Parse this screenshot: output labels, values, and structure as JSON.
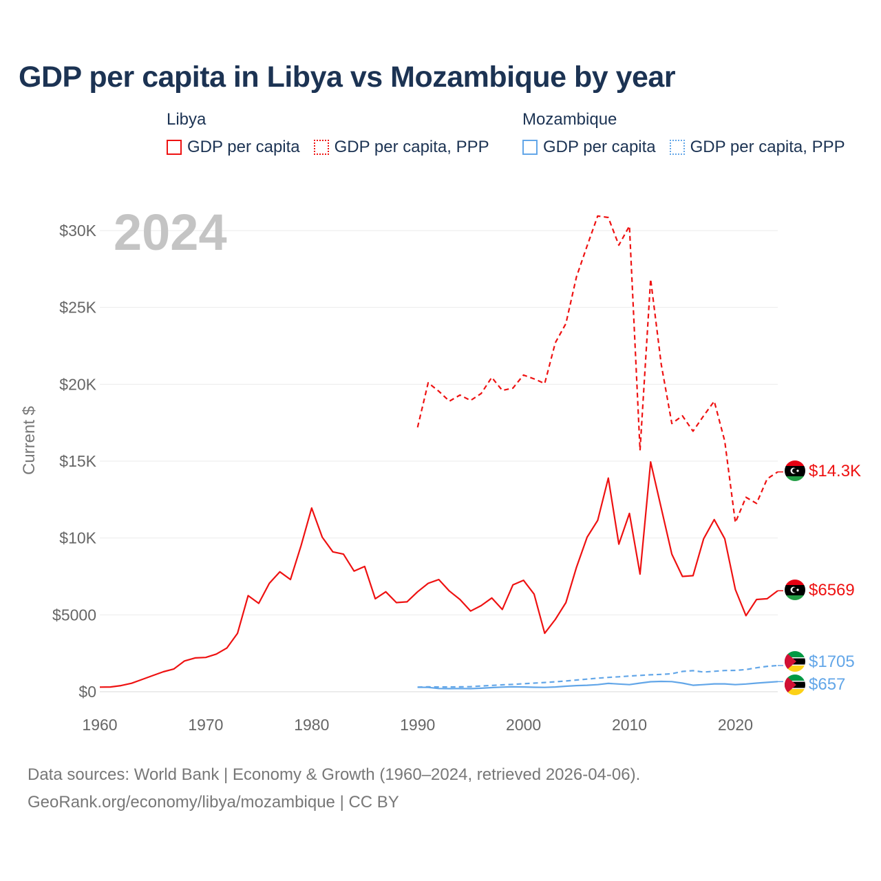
{
  "title": "GDP per capita in Libya vs Mozambique by year",
  "legend": {
    "groups": [
      {
        "name": "Libya",
        "items": [
          "GDP per capita",
          "GDP per capita, PPP"
        ]
      },
      {
        "name": "Mozambique",
        "items": [
          "GDP per capita",
          "GDP per capita, PPP"
        ]
      }
    ]
  },
  "year_watermark": "2024",
  "footer": {
    "line1": "Data sources: World Bank | Economy & Growth (1960–2024, retrieved 2026-04-06).",
    "line2": "GeoRank.org/economy/libya/mozambique | CC BY"
  },
  "chart_data": {
    "type": "line",
    "title": "GDP per capita in Libya vs Mozambique by year",
    "ylabel": "Current $",
    "xlabel": "",
    "xlim": [
      1960,
      2024
    ],
    "ylim": [
      0,
      31000
    ],
    "x_ticks": [
      1960,
      1970,
      1980,
      1990,
      2000,
      2010,
      2020
    ],
    "y_ticks": [
      {
        "value": 0,
        "label": "$0"
      },
      {
        "value": 5000,
        "label": "$5000"
      },
      {
        "value": 10000,
        "label": "$10K"
      },
      {
        "value": 15000,
        "label": "$15K"
      },
      {
        "value": 20000,
        "label": "$20K"
      },
      {
        "value": 25000,
        "label": "$25K"
      },
      {
        "value": 30000,
        "label": "$30K"
      }
    ],
    "grid": true,
    "series": [
      {
        "name": "Libya GDP per capita",
        "country": "Libya",
        "style": "solid",
        "color": "#ee1111",
        "end_label": "$6569",
        "x": [
          1960,
          1961,
          1962,
          1963,
          1964,
          1965,
          1966,
          1967,
          1968,
          1969,
          1970,
          1971,
          1972,
          1973,
          1974,
          1975,
          1976,
          1977,
          1978,
          1979,
          1980,
          1981,
          1982,
          1983,
          1984,
          1985,
          1986,
          1987,
          1988,
          1989,
          1990,
          1991,
          1992,
          1993,
          1994,
          1995,
          1996,
          1997,
          1998,
          1999,
          2000,
          2001,
          2002,
          2003,
          2004,
          2005,
          2006,
          2007,
          2008,
          2009,
          2010,
          2011,
          2012,
          2013,
          2014,
          2015,
          2016,
          2017,
          2018,
          2019,
          2020,
          2021,
          2022,
          2023,
          2024
        ],
        "values": [
          300,
          310,
          400,
          550,
          800,
          1050,
          1300,
          1480,
          2000,
          2200,
          2230,
          2450,
          2850,
          3800,
          6250,
          5750,
          7050,
          7800,
          7300,
          9500,
          11950,
          10050,
          9100,
          8950,
          7850,
          8150,
          6050,
          6500,
          5800,
          5850,
          6500,
          7050,
          7300,
          6550,
          6000,
          5250,
          5600,
          6100,
          5350,
          6950,
          7250,
          6350,
          3800,
          4700,
          5800,
          8100,
          10050,
          11150,
          13900,
          9600,
          11600,
          7650,
          14950,
          11950,
          8950,
          7500,
          7550,
          9950,
          11200,
          9950,
          6650,
          4950,
          6000,
          6050,
          6569
        ]
      },
      {
        "name": "Libya GDP per capita, PPP",
        "country": "Libya",
        "style": "dashed",
        "color": "#ee1111",
        "end_label": "$14.3K",
        "x": [
          1990,
          1991,
          1992,
          1993,
          1994,
          1995,
          1996,
          1997,
          1998,
          1999,
          2000,
          2001,
          2002,
          2003,
          2004,
          2005,
          2006,
          2007,
          2008,
          2009,
          2010,
          2011,
          2012,
          2013,
          2014,
          2015,
          2016,
          2017,
          2018,
          2019,
          2020,
          2021,
          2022,
          2023,
          2024
        ],
        "values": [
          17200,
          20100,
          19550,
          18900,
          19300,
          18950,
          19400,
          20450,
          19600,
          19750,
          20600,
          20350,
          20050,
          22700,
          23950,
          27000,
          29000,
          30950,
          30850,
          29050,
          30300,
          15700,
          26850,
          21300,
          17450,
          17950,
          16950,
          17950,
          18900,
          16300,
          11000,
          12650,
          12250,
          13850,
          14300
        ]
      },
      {
        "name": "Mozambique GDP per capita",
        "country": "Mozambique",
        "style": "solid",
        "color": "#62a6e8",
        "end_label": "$657",
        "x": [
          1990,
          1991,
          1992,
          1993,
          1994,
          1995,
          1996,
          1997,
          1998,
          1999,
          2000,
          2001,
          2002,
          2003,
          2004,
          2005,
          2006,
          2007,
          2008,
          2009,
          2010,
          2011,
          2012,
          2013,
          2014,
          2015,
          2016,
          2017,
          2018,
          2019,
          2020,
          2021,
          2022,
          2023,
          2024
        ],
        "values": [
          290,
          280,
          210,
          200,
          210,
          200,
          230,
          270,
          300,
          320,
          310,
          290,
          280,
          310,
          360,
          400,
          420,
          460,
          540,
          500,
          460,
          560,
          650,
          670,
          660,
          560,
          420,
          460,
          510,
          510,
          460,
          500,
          560,
          610,
          657
        ]
      },
      {
        "name": "Mozambique GDP per capita, PPP",
        "country": "Mozambique",
        "style": "dashed",
        "color": "#62a6e8",
        "end_label": "$1705",
        "x": [
          1990,
          1991,
          1992,
          1993,
          1994,
          1995,
          1996,
          1997,
          1998,
          1999,
          2000,
          2001,
          2002,
          2003,
          2004,
          2005,
          2006,
          2007,
          2008,
          2009,
          2010,
          2011,
          2012,
          2013,
          2014,
          2015,
          2016,
          2017,
          2018,
          2019,
          2020,
          2021,
          2022,
          2023,
          2024
        ],
        "values": [
          300,
          320,
          310,
          310,
          320,
          330,
          370,
          410,
          450,
          480,
          520,
          560,
          600,
          650,
          700,
          760,
          820,
          880,
          930,
          970,
          1020,
          1060,
          1100,
          1130,
          1170,
          1320,
          1370,
          1280,
          1330,
          1380,
          1390,
          1440,
          1560,
          1650,
          1705
        ]
      }
    ]
  }
}
